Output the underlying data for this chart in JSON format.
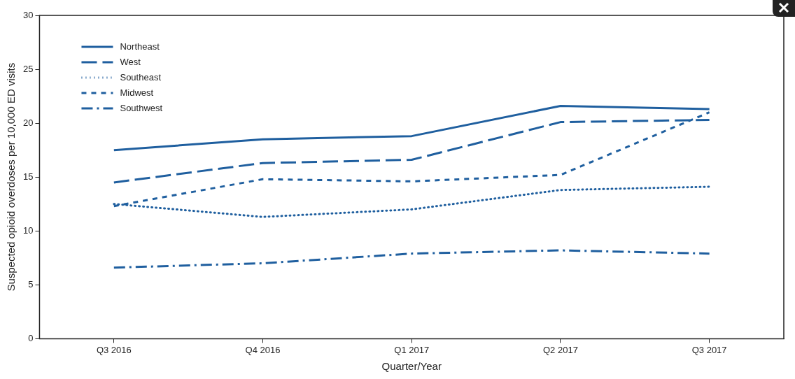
{
  "chart_data": {
    "type": "line",
    "xlabel": "Quarter/Year",
    "ylabel": "Suspected opioid overdoses per 10,000 ED visits",
    "categories": [
      "Q3 2016",
      "Q4 2016",
      "Q1 2017",
      "Q2 2017",
      "Q3 2017"
    ],
    "series": [
      {
        "name": "Northeast",
        "color": "#1f5f9f",
        "line_style": "solid",
        "values": [
          17.5,
          18.5,
          18.8,
          21.6,
          21.3
        ]
      },
      {
        "name": "West",
        "color": "#1f5f9f",
        "line_style": "longdash",
        "values": [
          14.5,
          16.3,
          16.6,
          20.1,
          20.3
        ]
      },
      {
        "name": "Southeast",
        "color": "#1f5f9f",
        "line_style": "dotted",
        "values": [
          12.5,
          11.3,
          12.0,
          13.8,
          14.1
        ]
      },
      {
        "name": "Midwest",
        "color": "#1f5f9f",
        "line_style": "dashed",
        "values": [
          12.3,
          14.8,
          14.6,
          15.2,
          21.0
        ]
      },
      {
        "name": "Southwest",
        "color": "#1f5f9f",
        "line_style": "dashdot",
        "values": [
          6.6,
          7.0,
          7.9,
          8.2,
          7.9
        ]
      }
    ],
    "ylim": [
      0,
      30
    ],
    "yticks": [
      0,
      5,
      10,
      15,
      20,
      25,
      30
    ],
    "grid": false,
    "legend": "top left",
    "marker": "none"
  }
}
